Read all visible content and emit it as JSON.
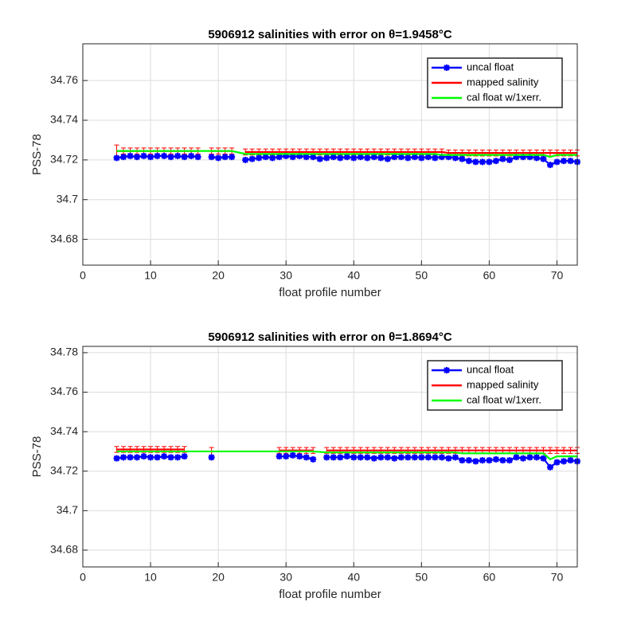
{
  "chart_data": [
    {
      "type": "line",
      "title": "5906912 salinities with error on θ=1.9458°C",
      "xlabel": "float profile number",
      "ylabel": "PSS-78",
      "xlim": [
        0,
        73
      ],
      "xticks": [
        0,
        10,
        20,
        30,
        40,
        50,
        60,
        70
      ],
      "ylim": [
        34.667,
        34.7785
      ],
      "yticks": [
        34.68,
        34.7,
        34.72,
        34.74,
        34.76
      ],
      "grid": true,
      "legend": "upper right",
      "x": [
        5,
        6,
        7,
        8,
        9,
        10,
        11,
        12,
        13,
        14,
        15,
        16,
        17,
        18,
        19,
        20,
        21,
        22,
        23,
        24,
        25,
        26,
        27,
        28,
        29,
        30,
        31,
        32,
        33,
        34,
        35,
        36,
        37,
        38,
        39,
        40,
        41,
        42,
        43,
        44,
        45,
        46,
        47,
        48,
        49,
        50,
        51,
        52,
        53,
        54,
        55,
        56,
        57,
        58,
        59,
        60,
        61,
        62,
        63,
        64,
        65,
        66,
        67,
        68,
        69,
        70,
        71,
        72,
        73
      ],
      "series": [
        {
          "name": "uncal float",
          "color": "#0000ff",
          "values": [
            34.721,
            34.7215,
            34.722,
            34.7215,
            34.722,
            34.7215,
            34.722,
            34.722,
            34.7215,
            34.722,
            34.7215,
            34.722,
            34.7215,
            null,
            34.7215,
            34.721,
            34.7215,
            34.7215,
            null,
            34.72,
            34.7205,
            34.721,
            34.7215,
            34.721,
            34.7215,
            34.722,
            34.7215,
            34.722,
            34.7215,
            34.7215,
            34.7205,
            34.721,
            34.7215,
            34.721,
            34.7215,
            34.721,
            34.7215,
            34.721,
            34.7215,
            34.721,
            34.7205,
            34.7215,
            34.7215,
            34.721,
            34.7215,
            34.721,
            34.7215,
            34.721,
            34.7215,
            34.7215,
            34.721,
            34.7205,
            34.7195,
            34.719,
            34.719,
            34.719,
            34.7195,
            34.7205,
            34.72,
            34.7215,
            34.7215,
            34.7215,
            34.721,
            34.7205,
            34.7175,
            34.719,
            34.7195,
            34.7195,
            34.719
          ]
        },
        {
          "name": "mapped salinity",
          "color": "#ff0000",
          "values": [
            34.7245,
            34.7245,
            34.7245,
            34.7245,
            34.7245,
            34.7245,
            34.7245,
            34.7245,
            34.7245,
            34.7245,
            34.7245,
            34.7245,
            34.7245,
            null,
            34.7245,
            34.7245,
            34.7245,
            34.7245,
            null,
            34.724,
            34.724,
            34.724,
            34.724,
            34.724,
            34.724,
            34.724,
            34.724,
            34.724,
            34.724,
            34.724,
            34.724,
            34.724,
            34.724,
            34.724,
            34.724,
            34.724,
            34.724,
            34.724,
            34.724,
            34.724,
            34.724,
            34.724,
            34.724,
            34.724,
            34.724,
            34.724,
            34.724,
            34.724,
            34.724,
            34.7235,
            34.7235,
            34.7235,
            34.7235,
            34.7235,
            34.7235,
            34.7235,
            34.7235,
            34.7235,
            34.7235,
            34.7235,
            34.7235,
            34.7235,
            34.7235,
            34.7235,
            34.7235,
            34.7235,
            34.7235,
            34.7235,
            34.7235
          ],
          "errors": [
            0.003,
            0.0015,
            0.0015,
            0.0015,
            0.0015,
            0.0015,
            0.0015,
            0.0015,
            0.0015,
            0.0015,
            0.0015,
            0.0015,
            0.0015,
            null,
            0.0015,
            0.0015,
            0.0015,
            0.0015,
            null,
            0.0015,
            0.0015,
            0.0015,
            0.0015,
            0.0015,
            0.0015,
            0.0015,
            0.0015,
            0.0015,
            0.0015,
            0.0015,
            0.0015,
            0.0015,
            0.0015,
            0.0015,
            0.0015,
            0.0015,
            0.0015,
            0.0015,
            0.0015,
            0.0015,
            0.0015,
            0.0015,
            0.0015,
            0.0015,
            0.0015,
            0.0015,
            0.0015,
            0.0015,
            0.0015,
            0.0015,
            0.0015,
            0.0015,
            0.0015,
            0.0015,
            0.0015,
            0.0015,
            0.0015,
            0.0015,
            0.0015,
            0.0015,
            0.0015,
            0.0015,
            0.0015,
            0.0015,
            0.0015,
            0.0015,
            0.0015,
            0.0015,
            0.0015
          ]
        },
        {
          "name": "cal float w/1xerr.",
          "color": "#00ff00",
          "x": [
            5,
            6,
            7,
            8,
            9,
            10,
            11,
            12,
            13,
            14,
            15,
            16,
            17,
            19,
            20,
            21,
            22,
            24,
            25,
            26,
            27,
            28,
            29,
            30,
            31,
            32,
            33,
            34,
            35,
            36,
            37,
            38,
            39,
            40,
            41,
            42,
            43,
            44,
            45,
            46,
            47,
            48,
            49,
            50,
            51,
            52,
            53,
            54,
            55,
            56,
            57,
            58,
            59,
            60,
            61,
            62,
            63,
            64,
            65,
            66,
            67,
            68,
            69,
            70,
            71,
            72,
            73
          ],
          "values": [
            34.7245,
            34.7245,
            34.7245,
            34.7245,
            34.7245,
            34.7245,
            34.7245,
            34.7245,
            34.7245,
            34.7245,
            34.7245,
            34.7245,
            34.7245,
            34.7245,
            34.7245,
            34.7245,
            34.7245,
            34.723,
            34.723,
            34.723,
            34.723,
            34.723,
            34.723,
            34.723,
            34.723,
            34.723,
            34.723,
            34.723,
            34.723,
            34.723,
            34.723,
            34.723,
            34.723,
            34.723,
            34.723,
            34.723,
            34.723,
            34.723,
            34.723,
            34.723,
            34.723,
            34.723,
            34.723,
            34.723,
            34.723,
            34.723,
            34.7225,
            34.7225,
            34.7225,
            34.7225,
            34.7225,
            34.7225,
            34.7225,
            34.7225,
            34.7225,
            34.7225,
            34.7225,
            34.7225,
            34.7225,
            34.7225,
            34.7225,
            34.7225,
            34.7215,
            34.7225,
            34.7225,
            34.7225,
            34.7225
          ]
        }
      ]
    },
    {
      "type": "line",
      "title": "5906912 salinities with error on θ=1.8694°C",
      "xlabel": "float profile number",
      "ylabel": "PSS-78",
      "xlim": [
        0,
        73
      ],
      "xticks": [
        0,
        10,
        20,
        30,
        40,
        50,
        60,
        70
      ],
      "ylim": [
        34.6715,
        34.7832
      ],
      "yticks": [
        34.68,
        34.7,
        34.72,
        34.74,
        34.76,
        34.78
      ],
      "grid": true,
      "legend": "upper right",
      "x": [
        5,
        6,
        7,
        8,
        9,
        10,
        11,
        12,
        13,
        14,
        15,
        16,
        17,
        18,
        19,
        20,
        21,
        22,
        23,
        24,
        25,
        26,
        27,
        28,
        29,
        30,
        31,
        32,
        33,
        34,
        35,
        36,
        37,
        38,
        39,
        40,
        41,
        42,
        43,
        44,
        45,
        46,
        47,
        48,
        49,
        50,
        51,
        52,
        53,
        54,
        55,
        56,
        57,
        58,
        59,
        60,
        61,
        62,
        63,
        64,
        65,
        66,
        67,
        68,
        69,
        70,
        71,
        72,
        73
      ],
      "series": [
        {
          "name": "uncal float",
          "color": "#0000ff",
          "values": [
            34.7265,
            34.727,
            34.727,
            34.727,
            34.7275,
            34.727,
            34.727,
            34.7275,
            34.727,
            34.727,
            34.7275,
            null,
            null,
            null,
            34.727,
            null,
            null,
            null,
            null,
            null,
            null,
            null,
            null,
            null,
            34.7275,
            34.7275,
            34.728,
            34.7275,
            34.727,
            34.726,
            null,
            34.727,
            34.727,
            34.727,
            34.7275,
            34.727,
            34.727,
            34.727,
            34.7265,
            34.727,
            34.727,
            34.7265,
            34.727,
            34.727,
            34.727,
            34.727,
            34.727,
            34.727,
            34.727,
            34.7265,
            34.727,
            34.7255,
            34.7255,
            34.725,
            34.7255,
            34.7255,
            34.726,
            34.7255,
            34.7255,
            34.727,
            34.7265,
            34.727,
            34.727,
            34.7265,
            34.722,
            34.7245,
            34.725,
            34.7255,
            34.725
          ]
        },
        {
          "name": "mapped salinity",
          "color": "#ff0000",
          "values": [
            34.731,
            34.731,
            34.731,
            34.731,
            34.731,
            34.731,
            34.731,
            34.731,
            34.731,
            34.731,
            34.731,
            null,
            null,
            null,
            34.729,
            null,
            null,
            null,
            null,
            null,
            null,
            null,
            null,
            null,
            34.7305,
            34.7305,
            34.7305,
            34.7305,
            34.7305,
            34.7305,
            null,
            34.7305,
            34.7305,
            34.7305,
            34.7305,
            34.7305,
            34.7305,
            34.7305,
            34.7305,
            34.7305,
            34.7305,
            34.7305,
            34.7305,
            34.7305,
            34.7305,
            34.7305,
            34.7305,
            34.7305,
            34.7305,
            34.7305,
            34.7305,
            34.7305,
            34.7305,
            34.7305,
            34.7305,
            34.7305,
            34.7305,
            34.7305,
            34.7305,
            34.7305,
            34.7305,
            34.7305,
            34.7305,
            34.7305,
            34.7305,
            34.7305,
            34.7305,
            34.7305,
            34.7305
          ],
          "errors": [
            0.0015,
            0.0015,
            0.0015,
            0.0015,
            0.0015,
            0.0015,
            0.0015,
            0.0015,
            0.0015,
            0.0015,
            0.0015,
            null,
            null,
            null,
            0.003,
            null,
            null,
            null,
            null,
            null,
            null,
            null,
            null,
            null,
            0.0015,
            0.0015,
            0.0015,
            0.0015,
            0.0015,
            0.0015,
            null,
            0.0015,
            0.0015,
            0.0015,
            0.0015,
            0.0015,
            0.0015,
            0.0015,
            0.0015,
            0.0015,
            0.0015,
            0.0015,
            0.0015,
            0.0015,
            0.0015,
            0.0015,
            0.0015,
            0.0015,
            0.0015,
            0.0015,
            0.0015,
            0.0015,
            0.0015,
            0.0015,
            0.0015,
            0.0015,
            0.0015,
            0.0015,
            0.0015,
            0.0015,
            0.0015,
            0.0015,
            0.0015,
            0.0015,
            0.0015,
            0.0015,
            0.0015,
            0.0015,
            0.0015
          ]
        },
        {
          "name": "cal float w/1xerr.",
          "color": "#00ff00",
          "x": [
            5,
            6,
            7,
            8,
            9,
            10,
            11,
            12,
            13,
            14,
            15,
            19,
            29,
            30,
            31,
            32,
            33,
            34,
            36,
            37,
            38,
            39,
            40,
            41,
            42,
            43,
            44,
            45,
            46,
            47,
            48,
            49,
            50,
            51,
            52,
            53,
            54,
            55,
            56,
            57,
            58,
            59,
            60,
            61,
            62,
            63,
            64,
            65,
            66,
            67,
            68,
            69,
            70,
            71,
            72,
            73
          ],
          "values": [
            34.73,
            34.73,
            34.73,
            34.73,
            34.73,
            34.73,
            34.73,
            34.73,
            34.73,
            34.73,
            34.73,
            34.73,
            34.73,
            34.73,
            34.73,
            34.73,
            34.73,
            34.73,
            34.7295,
            34.7295,
            34.7295,
            34.7295,
            34.7295,
            34.7295,
            34.7295,
            34.7295,
            34.7295,
            34.7295,
            34.7295,
            34.7295,
            34.7295,
            34.7295,
            34.7295,
            34.7295,
            34.7295,
            34.7295,
            34.7295,
            34.7295,
            34.729,
            34.729,
            34.729,
            34.729,
            34.729,
            34.729,
            34.729,
            34.729,
            34.729,
            34.729,
            34.729,
            34.729,
            34.729,
            34.726,
            34.7275,
            34.7275,
            34.7275,
            34.7275
          ]
        }
      ]
    }
  ]
}
